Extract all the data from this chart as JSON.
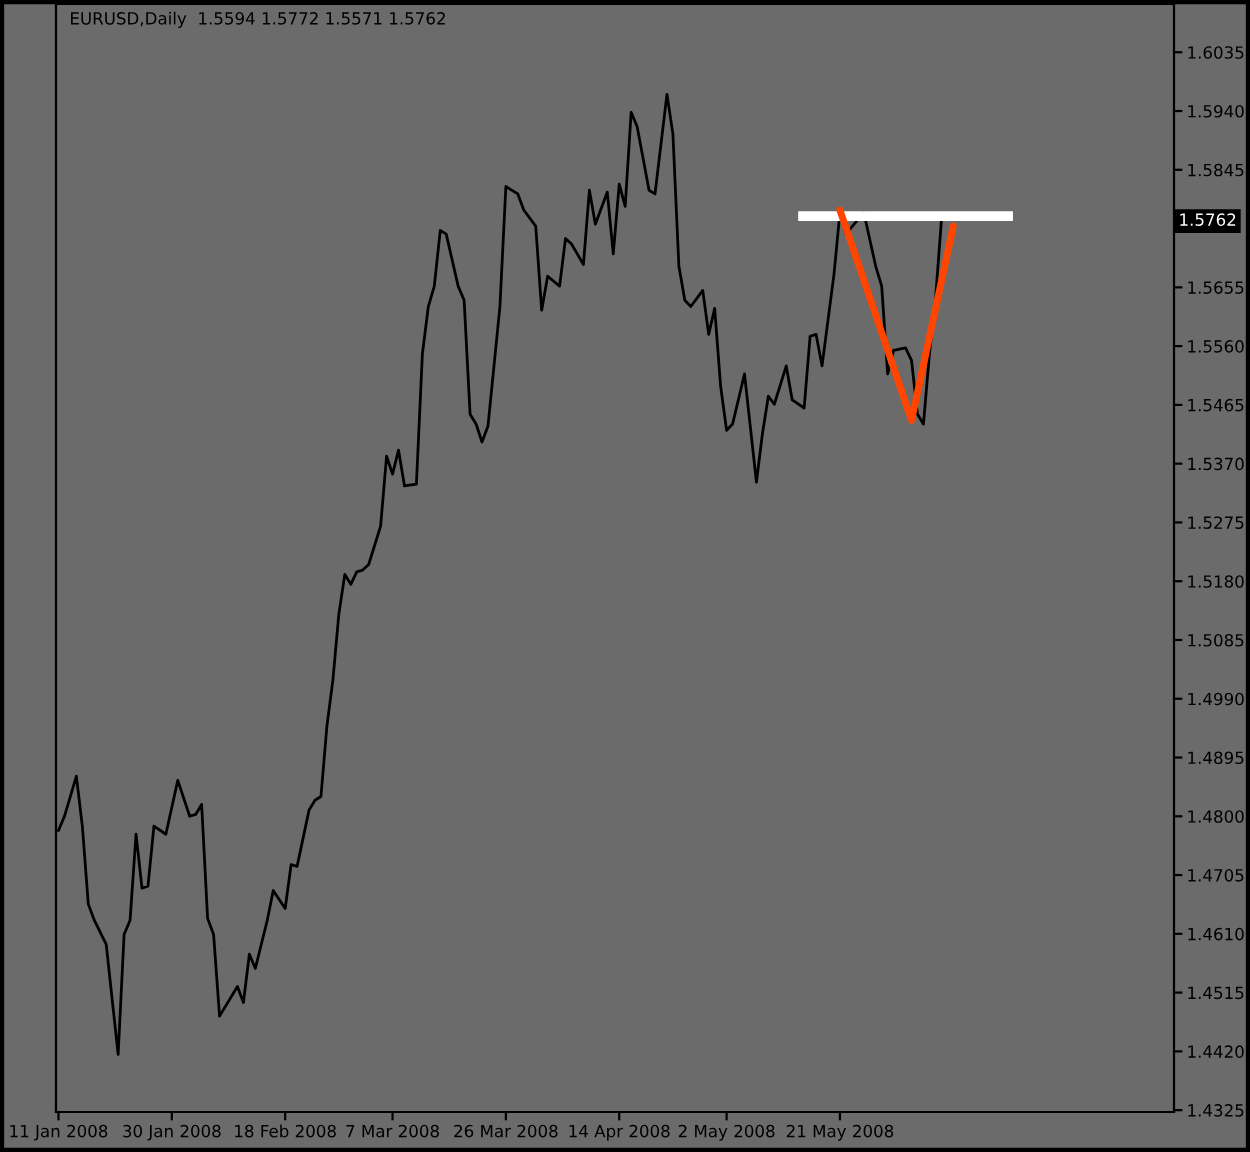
{
  "chart_data": {
    "type": "line",
    "title": "EURUSD,Daily  1.5594 1.5772 1.5571 1.5762",
    "xlim": [
      "2008-01-10T14:00",
      "2008-07-16"
    ],
    "ylim": [
      1.4322,
      1.6113
    ],
    "xticks": [
      {
        "value": "2008-01-11",
        "label": "11 Jan 2008"
      },
      {
        "value": "2008-01-30",
        "label": "30 Jan 2008"
      },
      {
        "value": "2008-02-18",
        "label": "18 Feb 2008"
      },
      {
        "value": "2008-03-07",
        "label": "7 Mar 2008"
      },
      {
        "value": "2008-03-26",
        "label": "26 Mar 2008"
      },
      {
        "value": "2008-04-14",
        "label": "14 Apr 2008"
      },
      {
        "value": "2008-05-02",
        "label": "2 May 2008"
      },
      {
        "value": "2008-05-21",
        "label": "21 May 2008"
      }
    ],
    "yticks": [
      1.6035,
      {
        "value": 1.594,
        "label": "1.5940"
      },
      1.5845,
      1.5655,
      {
        "value": 1.556,
        "label": "1.5560"
      },
      1.5465,
      {
        "value": 1.537,
        "label": "1.5370"
      },
      1.5275,
      {
        "value": 1.518,
        "label": "1.5180"
      },
      1.5085,
      {
        "value": 1.499,
        "label": "1.4990"
      },
      1.4895,
      {
        "value": 1.48,
        "label": "1.4800"
      },
      1.4705,
      {
        "value": 1.461,
        "label": "1.4610"
      },
      1.4515,
      {
        "value": 1.442,
        "label": "1.4420"
      },
      1.4325
    ],
    "grid": false,
    "marker": "none",
    "line_style": "solid",
    "series": [
      {
        "color": "#000000",
        "x": [
          "2008-01-11",
          "2008-01-12",
          "2008-01-14",
          "2008-01-15",
          "2008-01-16",
          "2008-01-17",
          "2008-01-19",
          "2008-01-21",
          "2008-01-22",
          "2008-01-23",
          "2008-01-24",
          "2008-01-25",
          "2008-01-26",
          "2008-01-27",
          "2008-01-29",
          "2008-01-31",
          "2008-02-02",
          "2008-02-03",
          "2008-02-04",
          "2008-02-05",
          "2008-02-06",
          "2008-02-07",
          "2008-02-10",
          "2008-02-11",
          "2008-02-12",
          "2008-02-13",
          "2008-02-15",
          "2008-02-16",
          "2008-02-18",
          "2008-02-19",
          "2008-02-20",
          "2008-02-22",
          "2008-02-23",
          "2008-02-24",
          "2008-02-25",
          "2008-02-26",
          "2008-02-27",
          "2008-02-28",
          "2008-02-29",
          "2008-03-01",
          "2008-03-02",
          "2008-03-03",
          "2008-03-05",
          "2008-03-06",
          "2008-03-07",
          "2008-03-08",
          "2008-03-09",
          "2008-03-11",
          "2008-03-12",
          "2008-03-13",
          "2008-03-14",
          "2008-03-15",
          "2008-03-16",
          "2008-03-18",
          "2008-03-19",
          "2008-03-20",
          "2008-03-21",
          "2008-03-22",
          "2008-03-23",
          "2008-03-25",
          "2008-03-26",
          "2008-03-28",
          "2008-03-29",
          "2008-03-31",
          "2008-04-01",
          "2008-04-02",
          "2008-04-04",
          "2008-04-05",
          "2008-04-06",
          "2008-04-08",
          "2008-04-09",
          "2008-04-10",
          "2008-04-12",
          "2008-04-13",
          "2008-04-14",
          "2008-04-15",
          "2008-04-16",
          "2008-04-17",
          "2008-04-19",
          "2008-04-20",
          "2008-04-22",
          "2008-04-23",
          "2008-04-24",
          "2008-04-25",
          "2008-04-26",
          "2008-04-28",
          "2008-04-29",
          "2008-04-30",
          "2008-05-01",
          "2008-05-02",
          "2008-05-03",
          "2008-05-05",
          "2008-05-07",
          "2008-05-08",
          "2008-05-09",
          "2008-05-10",
          "2008-05-12",
          "2008-05-13",
          "2008-05-15",
          "2008-05-16",
          "2008-05-17",
          "2008-05-18",
          "2008-05-20",
          "2008-05-21",
          "2008-05-22",
          "2008-05-25",
          "2008-05-27",
          "2008-05-28",
          "2008-05-29",
          "2008-05-30",
          "2008-06-01",
          "2008-06-02",
          "2008-06-03",
          "2008-06-04",
          "2008-06-05",
          "2008-06-06",
          "2008-06-07"
        ],
        "values": [
          1.4777,
          1.48,
          1.4865,
          1.4784,
          1.4658,
          1.4632,
          1.4593,
          1.4415,
          1.4609,
          1.4632,
          1.4771,
          1.4684,
          1.4687,
          1.4784,
          1.4771,
          1.4858,
          1.48,
          1.4803,
          1.4819,
          1.4635,
          1.4609,
          1.4477,
          1.4525,
          1.4499,
          1.4577,
          1.4554,
          1.4632,
          1.468,
          1.4651,
          1.4722,
          1.4719,
          1.481,
          1.4826,
          1.4832,
          1.4946,
          1.502,
          1.5127,
          1.5191,
          1.5175,
          1.5195,
          1.5198,
          1.5207,
          1.5269,
          1.5382,
          1.5353,
          1.5392,
          1.5334,
          1.5337,
          1.5547,
          1.5624,
          1.5657,
          1.5747,
          1.5741,
          1.5657,
          1.5634,
          1.545,
          1.5434,
          1.5405,
          1.5431,
          1.5624,
          1.5818,
          1.5806,
          1.578,
          1.5754,
          1.5618,
          1.5673,
          1.5657,
          1.5734,
          1.5725,
          1.5692,
          1.5812,
          1.5757,
          1.5809,
          1.5709,
          1.5822,
          1.5786,
          1.5938,
          1.5915,
          1.5812,
          1.5806,
          1.5967,
          1.5903,
          1.5689,
          1.5634,
          1.5624,
          1.565,
          1.5579,
          1.5621,
          1.5495,
          1.5424,
          1.5434,
          1.5515,
          1.534,
          1.5418,
          1.5479,
          1.5466,
          1.5528,
          1.5473,
          1.546,
          1.5576,
          1.5579,
          1.5528,
          1.5676,
          1.5776,
          1.5741,
          1.5776,
          1.5689,
          1.5657,
          1.5515,
          1.5553,
          1.5557,
          1.5537,
          1.545,
          1.5434,
          1.5547,
          1.5634,
          1.5762
        ]
      },
      {
        "color": "#ffffff",
        "x": [
          "2008-05-14",
          "2008-06-19"
        ],
        "values": [
          1.577,
          1.577
        ]
      },
      {
        "color": "#ff4500",
        "x": [
          "2008-05-21",
          "2008-06-02",
          "2008-06-09"
        ],
        "values": [
          1.578,
          1.544,
          1.5754
        ]
      }
    ],
    "annotations": [
      "1.5762"
    ]
  }
}
